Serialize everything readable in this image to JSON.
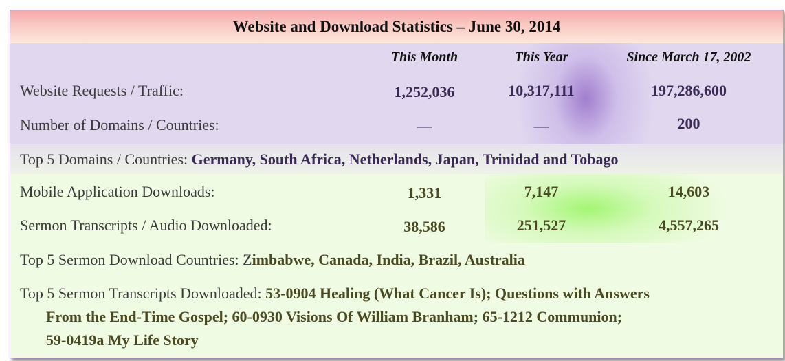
{
  "title": "Website and Download Statistics – June 30, 2014",
  "columns": [
    "This Month",
    "This Year",
    "Since March 17, 2002"
  ],
  "rows": [
    {
      "label": "Website Requests / Traffic:",
      "values": [
        "1,252,036",
        "10,317,111",
        "197,286,600"
      ]
    },
    {
      "label": "Number of Domains / Countries:",
      "values": [
        "—",
        "—",
        "200"
      ]
    },
    {
      "label": "Mobile Application Downloads:",
      "values": [
        "1,331",
        "7,147",
        "14,603"
      ]
    },
    {
      "label": "Sermon Transcripts  / Audio Downloaded:",
      "values": [
        "38,586",
        "251,527",
        "4,557,265"
      ]
    }
  ],
  "top_domains": {
    "label": "Top 5 Domains / Countries: ",
    "value": "Germany, South Africa, Netherlands, Japan, Trinidad and Tobago"
  },
  "top_sermon_countries": {
    "label": "Top 5 Sermon Download Countries: Z",
    "value": "imbabwe, Canada, India, Brazil, Australia"
  },
  "top_transcripts": {
    "label": "Top 5 Sermon Transcripts Downloaded: ",
    "line1": "53-0904 Healing (What Cancer Is); Questions with Answers",
    "line2": "From the End-Time Gospel; 60-0930 Visions Of William  Branham; 65-1212 Communion;",
    "line3": "59-0419a My Life Story"
  }
}
